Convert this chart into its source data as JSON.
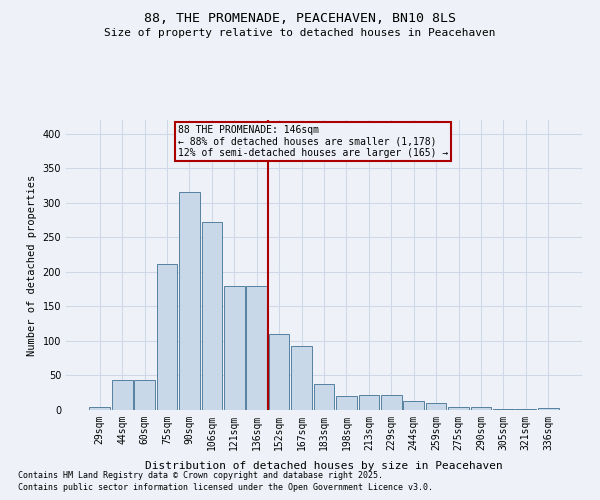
{
  "title1": "88, THE PROMENADE, PEACEHAVEN, BN10 8LS",
  "title2": "Size of property relative to detached houses in Peacehaven",
  "xlabel": "Distribution of detached houses by size in Peacehaven",
  "ylabel": "Number of detached properties",
  "categories": [
    "29sqm",
    "44sqm",
    "60sqm",
    "75sqm",
    "90sqm",
    "106sqm",
    "121sqm",
    "136sqm",
    "152sqm",
    "167sqm",
    "183sqm",
    "198sqm",
    "213sqm",
    "229sqm",
    "244sqm",
    "259sqm",
    "275sqm",
    "290sqm",
    "305sqm",
    "321sqm",
    "336sqm"
  ],
  "values": [
    5,
    44,
    44,
    212,
    315,
    272,
    179,
    179,
    110,
    92,
    38,
    20,
    22,
    22,
    13,
    10,
    5,
    5,
    2,
    1,
    3
  ],
  "bar_color": "#c8d8e8",
  "bar_edge_color": "#5580a0",
  "vline_color": "#aa0000",
  "annotation_title": "88 THE PROMENADE: 146sqm",
  "annotation_line1": "← 88% of detached houses are smaller (1,178)",
  "annotation_line2": "12% of semi-detached houses are larger (165) →",
  "annotation_box_edge": "#aa0000",
  "footnote1": "Contains HM Land Registry data © Crown copyright and database right 2025.",
  "footnote2": "Contains public sector information licensed under the Open Government Licence v3.0.",
  "ylim": [
    0,
    420
  ],
  "background_color": "#eef2f8",
  "grid_color": "#d0d8e8"
}
